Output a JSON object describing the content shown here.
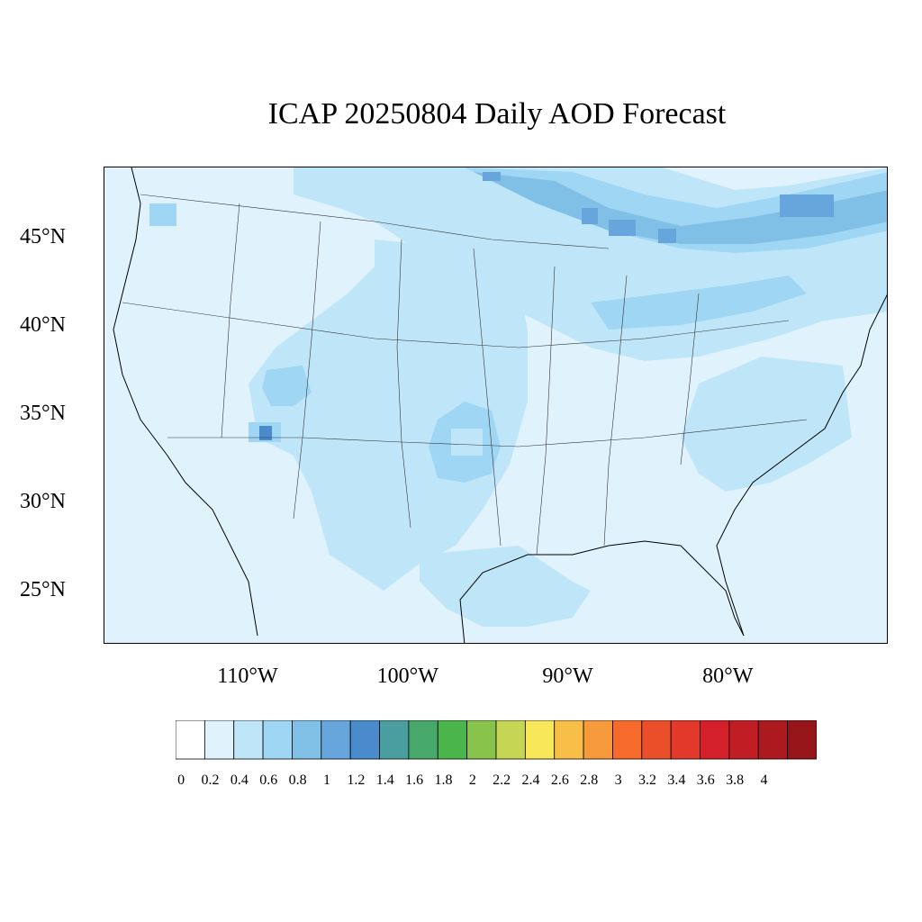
{
  "title": "ICAP 20250804 Daily AOD Forecast",
  "map": {
    "region": "continental-united-states",
    "lon_range": [
      -119,
      -70
    ],
    "lat_range": [
      22,
      49
    ],
    "lat_labels": [
      "45°N",
      "40°N",
      "35°N",
      "30°N",
      "25°N"
    ],
    "lat_values": [
      45,
      40,
      35,
      30,
      25
    ],
    "lon_labels": [
      "110°W",
      "100°W",
      "90°W",
      "80°W"
    ],
    "lon_values": [
      -110,
      -100,
      -90,
      -80
    ],
    "aod_features": [
      {
        "name": "northern-smoke-band",
        "level": 0.8,
        "peak": 1.0
      },
      {
        "name": "great-lakes-northeast",
        "level": 0.6
      },
      {
        "name": "central-plains-plume",
        "level": 0.4
      },
      {
        "name": "utah-arizona-spot",
        "level": 1.0
      },
      {
        "name": "southeast-coast",
        "level": 0.4
      },
      {
        "name": "background",
        "level": 0.2
      }
    ]
  },
  "colorbar": {
    "labels": [
      "0",
      "0.2",
      "0.4",
      "0.6",
      "0.8",
      "1",
      "1.2",
      "1.4",
      "1.6",
      "1.8",
      "2",
      "2.2",
      "2.4",
      "2.6",
      "2.8",
      "3",
      "3.2",
      "3.4",
      "3.6",
      "3.8",
      "4"
    ],
    "colors": [
      "#ffffff",
      "#e0f3fc",
      "#bfe6f8",
      "#9ed6f3",
      "#80bfe6",
      "#66a6dc",
      "#4a8ccb",
      "#4a9ea0",
      "#48a86c",
      "#4ab54a",
      "#88c44c",
      "#c4d654",
      "#f8e758",
      "#f8bf48",
      "#f79a3c",
      "#f66a2c",
      "#ea4f2a",
      "#e2392a",
      "#d4202b",
      "#c01d25",
      "#aa1a1f",
      "#951518"
    ]
  }
}
